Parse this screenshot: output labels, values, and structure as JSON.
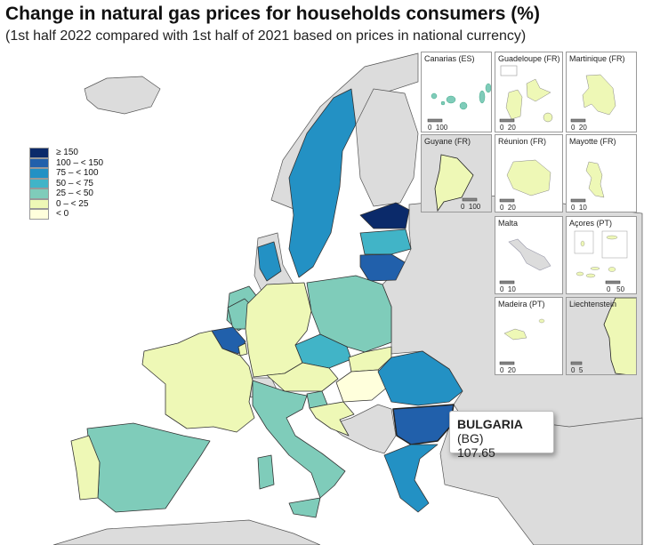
{
  "title": "Change in natural gas prices for households consumers (%)",
  "subtitle": "(1st half 2022 compared with 1st half of 2021 based on prices in national currency)",
  "legend": [
    {
      "label": "≥ 150",
      "color": "#0b2a6a"
    },
    {
      "label": "100 – < 150",
      "color": "#2160ab"
    },
    {
      "label": "75 – < 100",
      "color": "#2391c4"
    },
    {
      "label": "50 – < 75",
      "color": "#41b4c7"
    },
    {
      "label": "25 – < 50",
      "color": "#7fccba"
    },
    {
      "label": "0 – < 25",
      "color": "#eef8b6"
    },
    {
      "label": "< 0",
      "color": "#ffffdc"
    }
  ],
  "no_data_color": "#dcdcdc",
  "countries": {
    "EE": "≥ 150",
    "LT": "100 – < 150",
    "BE": "100 – < 150",
    "BG": "100 – < 150",
    "SE": "75 – < 100",
    "DK": "75 – < 100",
    "RO": "75 – < 100",
    "GR": "75 – < 100",
    "LV": "50 – < 75",
    "CZ": "50 – < 75",
    "IE": "25 – < 50",
    "NL": "25 – < 50",
    "PL": "25 – < 50",
    "IT": "25 – < 50",
    "ES": "25 – < 50",
    "SI": "25 – < 50",
    "DE": "0 – < 25",
    "FR": "0 – < 25",
    "AT": "0 – < 25",
    "SK": "0 – < 25",
    "PT": "0 – < 25",
    "HR": "0 – < 25",
    "LU": "0 – < 25",
    "HU": "< 0"
  },
  "insets": [
    {
      "name": "Canarias (ES)",
      "scale": [
        "0",
        "100"
      ]
    },
    {
      "name": "Guadeloupe (FR)",
      "scale": [
        "0",
        "20"
      ]
    },
    {
      "name": "Martinique (FR)",
      "scale": [
        "0",
        "20"
      ]
    },
    {
      "name": "Guyane (FR)",
      "scale": [
        "0",
        "100"
      ]
    },
    {
      "name": "Réunion (FR)",
      "scale": [
        "0",
        "20"
      ]
    },
    {
      "name": "Mayotte (FR)",
      "scale": [
        "0",
        "10"
      ]
    },
    {
      "name": "Malta",
      "scale": [
        "0",
        "10"
      ]
    },
    {
      "name": "Açores (PT)",
      "scale": [
        "0",
        "50"
      ]
    },
    {
      "name": "Madeira (PT)",
      "scale": [
        "0",
        "20"
      ]
    },
    {
      "name": "Liechtenstein",
      "scale": [
        "0",
        "5"
      ]
    }
  ],
  "tooltip": {
    "country": "BULGARIA",
    "code": "(BG)",
    "value": "107.65"
  }
}
